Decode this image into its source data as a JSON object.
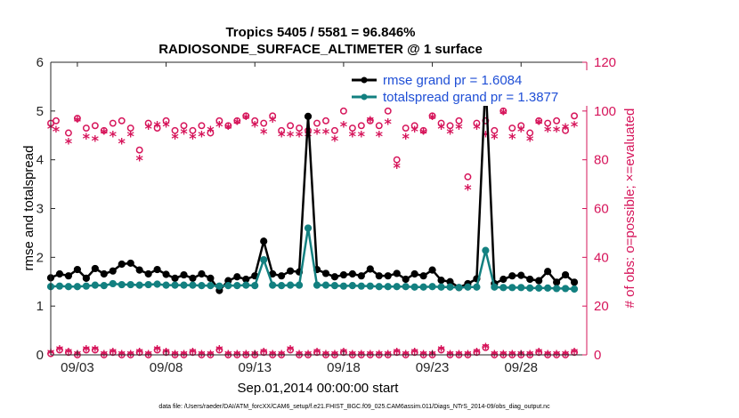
{
  "chart_data": {
    "type": "line",
    "title": "Tropics 5405 / 5581 = 96.846%",
    "subtitle": "RADIOSONDE_SURFACE_ALTIMETER @ 1 surface",
    "xlabel": "Sep.01,2014 00:00:00 start",
    "ylabel_left": "rmse and totalspread",
    "ylabel_right": "# of obs: o=possible; ×=evaluated",
    "footer": "data file: /Users/raeder/DAI/ATM_forcXX/CAM6_setup/f.e21.FHIST_BGC.f09_025.CAM6assim.011/Diags_NTrS_2014-09/obs_diag_output.nc",
    "xlim": [
      1.5,
      31.7
    ],
    "ylim_left": [
      0,
      6
    ],
    "ylim_right": [
      0,
      120
    ],
    "x_tick_labels": [
      "09/03",
      "09/08",
      "09/13",
      "09/18",
      "09/23",
      "09/28"
    ],
    "x_tick_values": [
      3,
      8,
      13,
      18,
      23,
      28
    ],
    "y_left_ticks": [
      "0",
      "1",
      "2",
      "3",
      "4",
      "5",
      "6"
    ],
    "y_right_ticks": [
      "0",
      "20",
      "40",
      "60",
      "80",
      "100",
      "120"
    ],
    "legend": [
      "rmse grand pr = 1.6084",
      "totalspread grand pr = 1.3877"
    ],
    "colors": {
      "rmse": "#000000",
      "spread": "#138080",
      "obs": "#d6145a",
      "legend_text": "#1f4fd6",
      "right_axis": "#d6145a"
    },
    "series": [
      {
        "name": "rmse",
        "x": [
          1.5,
          2,
          2.5,
          3,
          3.5,
          4,
          4.5,
          5,
          5.5,
          6,
          6.5,
          7,
          7.5,
          8,
          8.5,
          9,
          9.5,
          10,
          10.5,
          11,
          11.5,
          12,
          12.5,
          13,
          13.5,
          14,
          14.5,
          15,
          15.5,
          16,
          16.5,
          17,
          17.5,
          18,
          18.5,
          19,
          19.5,
          20,
          20.5,
          21,
          21.5,
          22,
          22.5,
          23,
          23.5,
          24,
          24.5,
          25,
          25.5,
          26,
          26.5,
          27,
          27.5,
          28,
          28.5,
          29,
          29.5,
          30,
          30.5,
          31
        ],
        "values": [
          1.58,
          1.66,
          1.62,
          1.75,
          1.57,
          1.77,
          1.66,
          1.72,
          1.86,
          1.88,
          1.74,
          1.66,
          1.75,
          1.65,
          1.57,
          1.64,
          1.57,
          1.66,
          1.57,
          1.32,
          1.52,
          1.6,
          1.55,
          1.62,
          2.33,
          1.66,
          1.62,
          1.72,
          1.7,
          4.89,
          1.75,
          1.67,
          1.6,
          1.64,
          1.66,
          1.62,
          1.76,
          1.62,
          1.62,
          1.67,
          1.55,
          1.66,
          1.62,
          1.74,
          1.53,
          1.5,
          1.38,
          1.46,
          1.56,
          5.64,
          1.46,
          1.55,
          1.62,
          1.63,
          1.55,
          1.52,
          1.71,
          1.49,
          1.64,
          1.49
        ]
      },
      {
        "name": "totalspread",
        "x": [
          1.5,
          2,
          2.5,
          3,
          3.5,
          4,
          4.5,
          5,
          5.5,
          6,
          6.5,
          7,
          7.5,
          8,
          8.5,
          9,
          9.5,
          10,
          10.5,
          11,
          11.5,
          12,
          12.5,
          13,
          13.5,
          14,
          14.5,
          15,
          15.5,
          16,
          16.5,
          17,
          17.5,
          18,
          18.5,
          19,
          19.5,
          20,
          20.5,
          21,
          21.5,
          22,
          22.5,
          23,
          23.5,
          24,
          24.5,
          25,
          25.5,
          26,
          26.5,
          27,
          27.5,
          28,
          28.5,
          29,
          29.5,
          30,
          30.5,
          31
        ],
        "values": [
          1.4,
          1.41,
          1.4,
          1.4,
          1.41,
          1.43,
          1.42,
          1.46,
          1.44,
          1.44,
          1.43,
          1.44,
          1.45,
          1.43,
          1.43,
          1.43,
          1.43,
          1.42,
          1.42,
          1.41,
          1.42,
          1.42,
          1.43,
          1.42,
          1.95,
          1.43,
          1.42,
          1.43,
          1.43,
          2.6,
          1.43,
          1.43,
          1.42,
          1.41,
          1.42,
          1.41,
          1.41,
          1.4,
          1.4,
          1.4,
          1.4,
          1.39,
          1.39,
          1.4,
          1.39,
          1.39,
          1.38,
          1.39,
          1.39,
          2.14,
          1.39,
          1.38,
          1.38,
          1.38,
          1.37,
          1.37,
          1.37,
          1.36,
          1.36,
          1.35
        ]
      },
      {
        "name": "obs_possible",
        "x": [
          1.5,
          1.8,
          2.5,
          3,
          3.5,
          4,
          4.5,
          5,
          5.5,
          6,
          6.5,
          7,
          7.5,
          8,
          8.5,
          9,
          9.5,
          10,
          10.5,
          11,
          11.5,
          12,
          12.5,
          13,
          13.5,
          14,
          14.5,
          15,
          15.5,
          16,
          16.5,
          17,
          17.5,
          18,
          18.5,
          19,
          19.5,
          20,
          20.5,
          21,
          21.5,
          22,
          22.5,
          23,
          23.5,
          24,
          24.5,
          25,
          25.5,
          26,
          26.5,
          27,
          27.5,
          28,
          28.5,
          29,
          29.5,
          30,
          30.5,
          31
        ],
        "values": [
          95,
          96,
          91,
          97,
          93,
          94,
          92,
          95,
          96,
          93,
          84,
          95,
          93,
          96,
          92,
          94,
          92,
          94,
          91,
          96,
          94,
          96,
          98,
          96,
          95,
          98,
          92,
          94,
          93,
          92,
          95,
          96,
          92,
          100,
          93,
          94,
          96,
          94,
          100,
          80,
          93,
          94,
          92,
          98,
          95,
          94,
          96,
          73,
          95,
          96,
          92,
          100,
          93,
          94,
          91,
          96,
          95,
          96,
          92,
          98
        ]
      },
      {
        "name": "obs_evaluated",
        "x": [
          1.5,
          1.8,
          2.5,
          3,
          3.5,
          4,
          4.5,
          5,
          5.5,
          6,
          6.5,
          7,
          7.5,
          8,
          8.5,
          9,
          9.5,
          10,
          10.5,
          11,
          11.5,
          12,
          12.5,
          13,
          13.5,
          14,
          14.5,
          15,
          15.5,
          16,
          16.5,
          17,
          17.5,
          18,
          18.5,
          19,
          19.5,
          20,
          20.5,
          21,
          21.5,
          22,
          22.5,
          23,
          23.5,
          24,
          24.5,
          25,
          25.5,
          26,
          26.5,
          27,
          27.5,
          28,
          28.5,
          29,
          29.5,
          30,
          30.5,
          31
        ],
        "values": [
          93,
          92,
          87,
          96,
          89,
          88,
          91,
          90,
          87,
          90,
          80,
          93,
          94,
          94,
          89,
          91,
          89,
          90,
          92,
          94,
          93,
          95,
          97,
          94,
          91,
          96,
          90,
          90,
          90,
          90,
          91,
          91,
          88,
          94,
          90,
          90,
          96,
          90,
          95,
          77,
          89,
          92,
          91,
          97,
          93,
          91,
          93,
          68,
          93,
          90,
          89,
          99,
          89,
          92,
          88,
          95,
          92,
          92,
          93,
          94
        ]
      },
      {
        "name": "obs_bottom",
        "x": [
          1.5,
          2,
          2.5,
          3,
          3.5,
          4,
          4.5,
          5,
          5.5,
          6,
          6.5,
          7,
          7.5,
          8,
          8.5,
          9,
          9.5,
          10,
          10.5,
          11,
          11.5,
          12,
          12.5,
          13,
          13.5,
          14,
          14.5,
          15,
          15.5,
          16,
          16.5,
          17,
          17.5,
          18,
          18.5,
          19,
          19.5,
          20,
          20.5,
          21,
          21.5,
          22,
          22.5,
          23,
          23.5,
          24,
          24.5,
          25,
          25.5,
          26,
          26.5,
          27,
          27.5,
          28,
          28.5,
          29,
          29.5,
          30,
          30.5,
          31
        ],
        "values": [
          0.5,
          2,
          1,
          0,
          2,
          2,
          0,
          1,
          0,
          0,
          1,
          0,
          2,
          1,
          0,
          0,
          1,
          0,
          0,
          2,
          0,
          0,
          0,
          0,
          1,
          0,
          0,
          2,
          0,
          0,
          1,
          0,
          0,
          1,
          0,
          0,
          0,
          0,
          0,
          1,
          0,
          1,
          0,
          0,
          2,
          0,
          0,
          0,
          1,
          3,
          0,
          0,
          0,
          0,
          0,
          1,
          0,
          0,
          0,
          1
        ]
      }
    ]
  }
}
